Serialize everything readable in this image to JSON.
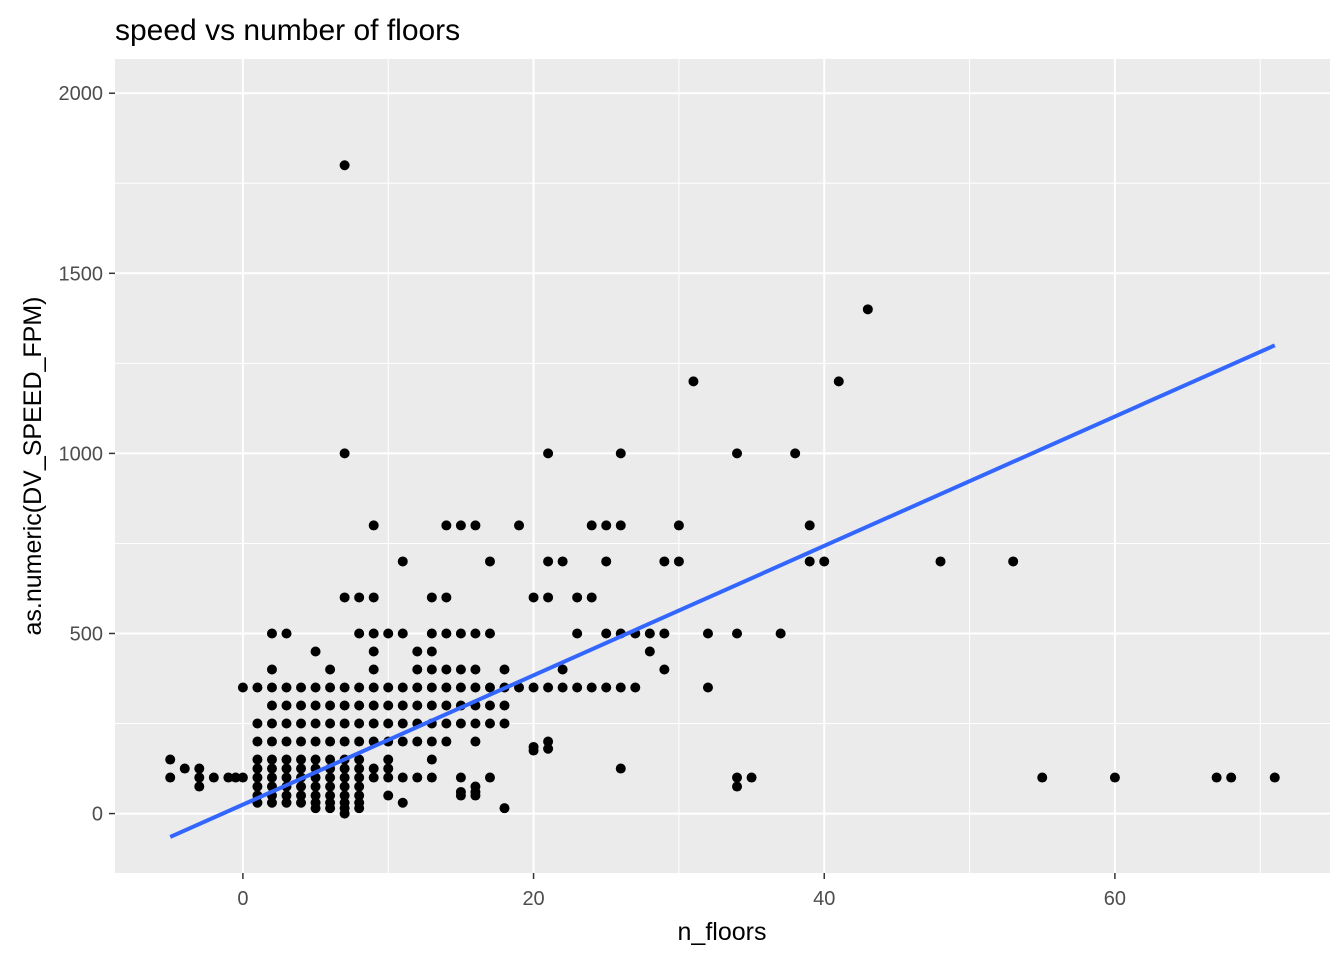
{
  "chart_data": {
    "type": "scatter",
    "title": "speed vs number of floors",
    "xlabel": "n_floors",
    "ylabel": "as.numeric(DV_SPEED_FPM)",
    "xlim": [
      -8.8,
      74.8
    ],
    "ylim": [
      -165,
      2095
    ],
    "x_ticks": [
      0,
      20,
      40,
      60
    ],
    "y_ticks": [
      0,
      500,
      1000,
      1500,
      2000
    ],
    "grid": true,
    "legend": "none",
    "colors": {
      "panel": "#ebebeb",
      "grid": "#ffffff",
      "points": "#000000",
      "trend": "#3366ff",
      "tick_text": "#4d4d4d"
    },
    "points": [
      [
        7,
        1800
      ],
      [
        43,
        1400
      ],
      [
        31,
        1200
      ],
      [
        41,
        1200
      ],
      [
        7,
        1000
      ],
      [
        21,
        1000
      ],
      [
        26,
        1000
      ],
      [
        34,
        1000
      ],
      [
        38,
        1000
      ],
      [
        9,
        800
      ],
      [
        14,
        800
      ],
      [
        15,
        800
      ],
      [
        16,
        800
      ],
      [
        19,
        800
      ],
      [
        24,
        800
      ],
      [
        25,
        800
      ],
      [
        26,
        800
      ],
      [
        30,
        800
      ],
      [
        39,
        800
      ],
      [
        11,
        700
      ],
      [
        17,
        700
      ],
      [
        21,
        700
      ],
      [
        22,
        700
      ],
      [
        25,
        700
      ],
      [
        29,
        700
      ],
      [
        30,
        700
      ],
      [
        39,
        700
      ],
      [
        40,
        700
      ],
      [
        48,
        700
      ],
      [
        53,
        700
      ],
      [
        7,
        600
      ],
      [
        8,
        600
      ],
      [
        9,
        600
      ],
      [
        13,
        600
      ],
      [
        14,
        600
      ],
      [
        20,
        600
      ],
      [
        21,
        600
      ],
      [
        23,
        600
      ],
      [
        24,
        600
      ],
      [
        2,
        500
      ],
      [
        3,
        500
      ],
      [
        8,
        500
      ],
      [
        9,
        500
      ],
      [
        10,
        500
      ],
      [
        11,
        500
      ],
      [
        13,
        500
      ],
      [
        14,
        500
      ],
      [
        15,
        500
      ],
      [
        16,
        500
      ],
      [
        17,
        500
      ],
      [
        23,
        500
      ],
      [
        25,
        500
      ],
      [
        26,
        500
      ],
      [
        27,
        500
      ],
      [
        28,
        500
      ],
      [
        29,
        500
      ],
      [
        32,
        500
      ],
      [
        34,
        500
      ],
      [
        37,
        500
      ],
      [
        5,
        450
      ],
      [
        9,
        450
      ],
      [
        12,
        450
      ],
      [
        13,
        450
      ],
      [
        28,
        450
      ],
      [
        2,
        400
      ],
      [
        6,
        400
      ],
      [
        9,
        400
      ],
      [
        12,
        400
      ],
      [
        13,
        400
      ],
      [
        14,
        400
      ],
      [
        15,
        400
      ],
      [
        16,
        400
      ],
      [
        18,
        400
      ],
      [
        22,
        400
      ],
      [
        29,
        400
      ],
      [
        0,
        350
      ],
      [
        1,
        350
      ],
      [
        2,
        350
      ],
      [
        3,
        350
      ],
      [
        4,
        350
      ],
      [
        5,
        350
      ],
      [
        6,
        350
      ],
      [
        7,
        350
      ],
      [
        8,
        350
      ],
      [
        9,
        350
      ],
      [
        10,
        350
      ],
      [
        11,
        350
      ],
      [
        12,
        350
      ],
      [
        13,
        350
      ],
      [
        14,
        350
      ],
      [
        15,
        350
      ],
      [
        16,
        350
      ],
      [
        17,
        350
      ],
      [
        18,
        350
      ],
      [
        19,
        350
      ],
      [
        20,
        350
      ],
      [
        21,
        350
      ],
      [
        22,
        350
      ],
      [
        23,
        350
      ],
      [
        24,
        350
      ],
      [
        25,
        350
      ],
      [
        26,
        350
      ],
      [
        27,
        350
      ],
      [
        32,
        350
      ],
      [
        2,
        300
      ],
      [
        3,
        300
      ],
      [
        4,
        300
      ],
      [
        5,
        300
      ],
      [
        6,
        300
      ],
      [
        7,
        300
      ],
      [
        8,
        300
      ],
      [
        9,
        300
      ],
      [
        10,
        300
      ],
      [
        11,
        300
      ],
      [
        12,
        300
      ],
      [
        13,
        300
      ],
      [
        14,
        300
      ],
      [
        15,
        300
      ],
      [
        16,
        300
      ],
      [
        17,
        300
      ],
      [
        18,
        300
      ],
      [
        1,
        250
      ],
      [
        2,
        250
      ],
      [
        3,
        250
      ],
      [
        4,
        250
      ],
      [
        5,
        250
      ],
      [
        6,
        250
      ],
      [
        7,
        250
      ],
      [
        8,
        250
      ],
      [
        9,
        250
      ],
      [
        10,
        250
      ],
      [
        11,
        250
      ],
      [
        12,
        250
      ],
      [
        13,
        250
      ],
      [
        14,
        250
      ],
      [
        15,
        250
      ],
      [
        16,
        250
      ],
      [
        17,
        250
      ],
      [
        18,
        250
      ],
      [
        1,
        200
      ],
      [
        2,
        200
      ],
      [
        3,
        200
      ],
      [
        4,
        200
      ],
      [
        5,
        200
      ],
      [
        6,
        200
      ],
      [
        7,
        200
      ],
      [
        8,
        200
      ],
      [
        9,
        200
      ],
      [
        10,
        200
      ],
      [
        11,
        200
      ],
      [
        12,
        200
      ],
      [
        13,
        200
      ],
      [
        14,
        200
      ],
      [
        16,
        200
      ],
      [
        21,
        200
      ],
      [
        -5,
        150
      ],
      [
        1,
        150
      ],
      [
        2,
        150
      ],
      [
        3,
        150
      ],
      [
        4,
        150
      ],
      [
        5,
        150
      ],
      [
        6,
        150
      ],
      [
        7,
        150
      ],
      [
        8,
        150
      ],
      [
        10,
        150
      ],
      [
        13,
        150
      ],
      [
        -4,
        125
      ],
      [
        -3,
        125
      ],
      [
        1,
        125
      ],
      [
        2,
        125
      ],
      [
        3,
        125
      ],
      [
        4,
        125
      ],
      [
        5,
        125
      ],
      [
        6,
        125
      ],
      [
        7,
        125
      ],
      [
        8,
        125
      ],
      [
        9,
        125
      ],
      [
        10,
        125
      ],
      [
        26,
        125
      ],
      [
        -5,
        100
      ],
      [
        -3,
        100
      ],
      [
        -2,
        100
      ],
      [
        -1,
        100
      ],
      [
        -0.5,
        100
      ],
      [
        0,
        100
      ],
      [
        1,
        100
      ],
      [
        2,
        100
      ],
      [
        3,
        100
      ],
      [
        4,
        100
      ],
      [
        5,
        100
      ],
      [
        6,
        100
      ],
      [
        7,
        100
      ],
      [
        8,
        100
      ],
      [
        9,
        100
      ],
      [
        10,
        100
      ],
      [
        11,
        100
      ],
      [
        12,
        100
      ],
      [
        13,
        100
      ],
      [
        15,
        100
      ],
      [
        17,
        100
      ],
      [
        34,
        100
      ],
      [
        35,
        100
      ],
      [
        55,
        100
      ],
      [
        60,
        100
      ],
      [
        67,
        100
      ],
      [
        68,
        100
      ],
      [
        71,
        100
      ],
      [
        -3,
        75
      ],
      [
        1,
        75
      ],
      [
        2,
        75
      ],
      [
        3,
        75
      ],
      [
        4,
        75
      ],
      [
        5,
        75
      ],
      [
        6,
        75
      ],
      [
        7,
        75
      ],
      [
        8,
        75
      ],
      [
        16,
        75
      ],
      [
        34,
        75
      ],
      [
        1,
        50
      ],
      [
        2,
        50
      ],
      [
        3,
        50
      ],
      [
        4,
        50
      ],
      [
        5,
        50
      ],
      [
        6,
        50
      ],
      [
        7,
        50
      ],
      [
        8,
        50
      ],
      [
        10,
        50
      ],
      [
        15,
        50
      ],
      [
        16,
        50
      ],
      [
        1,
        30
      ],
      [
        2,
        30
      ],
      [
        3,
        30
      ],
      [
        4,
        30
      ],
      [
        5,
        30
      ],
      [
        6,
        30
      ],
      [
        7,
        30
      ],
      [
        8,
        30
      ],
      [
        11,
        30
      ],
      [
        5,
        15
      ],
      [
        6,
        15
      ],
      [
        7,
        15
      ],
      [
        8,
        15
      ],
      [
        18,
        15
      ],
      [
        7,
        0
      ],
      [
        20,
        175
      ],
      [
        21,
        180
      ],
      [
        15,
        60
      ],
      [
        16,
        60
      ],
      [
        20,
        185
      ]
    ],
    "trend_line": {
      "x": [
        -5,
        71
      ],
      "y": [
        -65,
        1300
      ]
    }
  }
}
